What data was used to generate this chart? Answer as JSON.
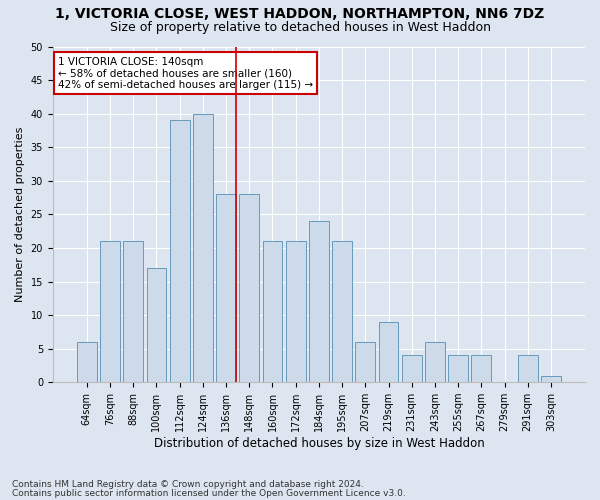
{
  "title1": "1, VICTORIA CLOSE, WEST HADDON, NORTHAMPTON, NN6 7DZ",
  "title2": "Size of property relative to detached houses in West Haddon",
  "xlabel": "Distribution of detached houses by size in West Haddon",
  "ylabel": "Number of detached properties",
  "categories": [
    "64sqm",
    "76sqm",
    "88sqm",
    "100sqm",
    "112sqm",
    "124sqm",
    "136sqm",
    "148sqm",
    "160sqm",
    "172sqm",
    "184sqm",
    "195sqm",
    "207sqm",
    "219sqm",
    "231sqm",
    "243sqm",
    "255sqm",
    "267sqm",
    "279sqm",
    "291sqm",
    "303sqm"
  ],
  "values": [
    6,
    21,
    21,
    17,
    39,
    40,
    28,
    28,
    21,
    21,
    24,
    21,
    6,
    9,
    4,
    6,
    4,
    4,
    0,
    4,
    1
  ],
  "bar_color": "#cddaea",
  "bar_edge_color": "#6699bb",
  "bar_linewidth": 0.7,
  "bg_color": "#dde6f0",
  "grid_color": "#ffffff",
  "vline_x_idx": 6,
  "vline_color": "#cc0000",
  "vline_lw": 1.2,
  "annotation_text": "1 VICTORIA CLOSE: 140sqm\n← 58% of detached houses are smaller (160)\n42% of semi-detached houses are larger (115) →",
  "annotation_box_color": "#ffffff",
  "annotation_edge_color": "#cc0000",
  "ylim": [
    0,
    50
  ],
  "yticks": [
    0,
    5,
    10,
    15,
    20,
    25,
    30,
    35,
    40,
    45,
    50
  ],
  "footer1": "Contains HM Land Registry data © Crown copyright and database right 2024.",
  "footer2": "Contains public sector information licensed under the Open Government Licence v3.0.",
  "title1_fontsize": 10,
  "title2_fontsize": 9,
  "xlabel_fontsize": 8.5,
  "ylabel_fontsize": 8,
  "tick_fontsize": 7,
  "annot_fontsize": 7.5,
  "footer_fontsize": 6.5
}
